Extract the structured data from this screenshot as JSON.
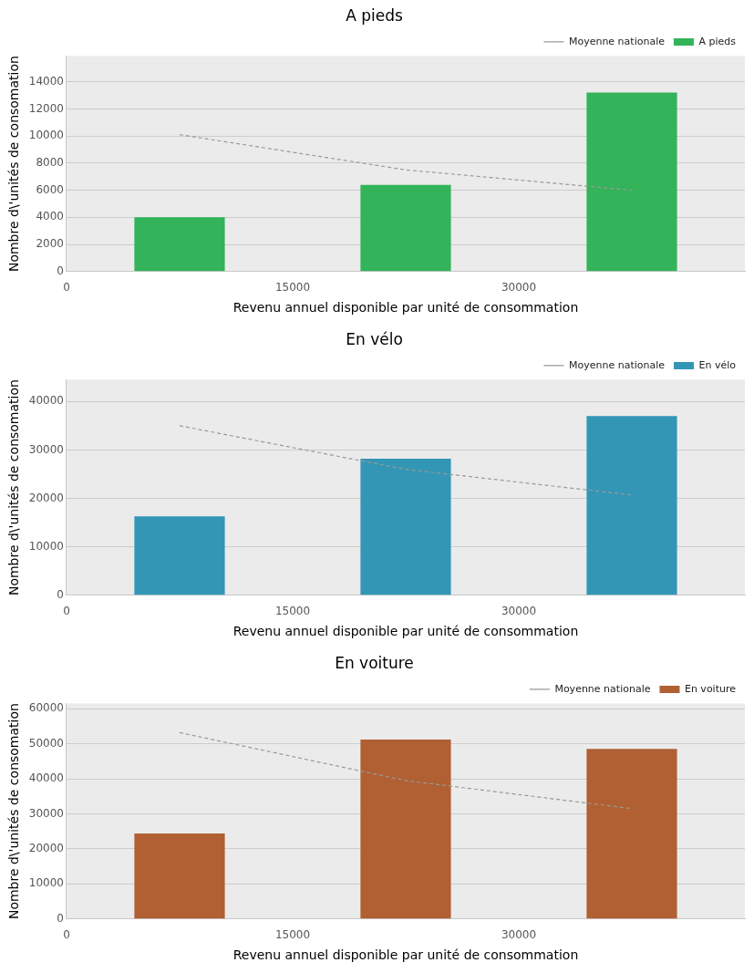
{
  "chart_data": [
    {
      "type": "bar",
      "title": "A pieds",
      "x_label": "Revenu annuel disponible par unité de consommation",
      "y_label": "Nombre d\\'unités de consomation",
      "x": [
        7500,
        22500,
        37500
      ],
      "series": [
        {
          "name": "Moyenne nationale",
          "type": "line",
          "line_style": "dashed",
          "color": "#999999",
          "values": [
            10100,
            7500,
            6000
          ]
        },
        {
          "name": "A pieds",
          "type": "bar",
          "color": "#33b35a",
          "values": [
            4000,
            6400,
            13200
          ]
        }
      ],
      "xlim": [
        0,
        45000
      ],
      "xticks": [
        0,
        15000,
        30000
      ],
      "ylim": [
        0,
        15900
      ],
      "yticks": [
        0,
        2000,
        4000,
        6000,
        8000,
        10000,
        12000,
        14000
      ],
      "grid": true,
      "legend": "upper right"
    },
    {
      "type": "bar",
      "title": "En vélo",
      "x_label": "Revenu annuel disponible par unité de consommation",
      "y_label": "Nombre d\\'unités de consomation",
      "x": [
        7500,
        22500,
        37500
      ],
      "series": [
        {
          "name": "Moyenne nationale",
          "type": "line",
          "line_style": "dashed",
          "color": "#999999",
          "values": [
            35000,
            26000,
            20700
          ]
        },
        {
          "name": "En vélo",
          "type": "bar",
          "color": "#3396b5",
          "values": [
            16300,
            28200,
            37000
          ]
        }
      ],
      "xlim": [
        0,
        45000
      ],
      "xticks": [
        0,
        15000,
        30000
      ],
      "ylim": [
        0,
        44500
      ],
      "yticks": [
        0,
        10000,
        20000,
        30000,
        40000
      ],
      "grid": true,
      "legend": "upper right"
    },
    {
      "type": "bar",
      "title": "En voiture",
      "x_label": "Revenu annuel disponible par unité de consommation",
      "y_label": "Nombre d\\'unités de consomation",
      "x": [
        7500,
        22500,
        37500
      ],
      "series": [
        {
          "name": "Moyenne nationale",
          "type": "line",
          "line_style": "dashed",
          "color": "#999999",
          "values": [
            53200,
            39500,
            31500
          ]
        },
        {
          "name": "En voiture",
          "type": "bar",
          "color": "#b06033",
          "values": [
            24400,
            51200,
            48500
          ]
        }
      ],
      "xlim": [
        0,
        45000
      ],
      "xticks": [
        0,
        15000,
        30000
      ],
      "ylim": [
        0,
        61500
      ],
      "yticks": [
        0,
        10000,
        20000,
        30000,
        40000,
        50000,
        60000
      ],
      "grid": true,
      "legend": "upper right"
    }
  ]
}
